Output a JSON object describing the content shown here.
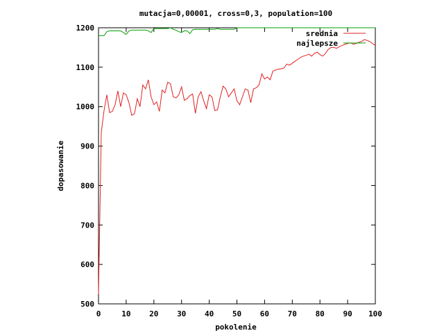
{
  "chart_data": {
    "type": "line",
    "title": "mutacja=0,00001, cross=0,3, population=100",
    "xlabel": "pokolenie",
    "ylabel": "dopasowanie",
    "xlim": [
      0,
      100
    ],
    "ylim": [
      500,
      1200
    ],
    "x_ticks": [
      0,
      10,
      20,
      30,
      40,
      50,
      60,
      70,
      80,
      90,
      100
    ],
    "y_ticks": [
      500,
      600,
      700,
      800,
      900,
      1000,
      1100,
      1200
    ],
    "legend_position": "top-right",
    "grid": false,
    "series": [
      {
        "name": "srednia",
        "color": "#e02020",
        "values": [
          525,
          935,
          990,
          1030,
          985,
          988,
          1005,
          1040,
          1000,
          1035,
          1030,
          1010,
          978,
          982,
          1020,
          1000,
          1055,
          1045,
          1068,
          1025,
          1005,
          1012,
          988,
          1042,
          1035,
          1062,
          1058,
          1025,
          1022,
          1030,
          1050,
          1016,
          1020,
          1028,
          1032,
          983,
          1025,
          1038,
          1015,
          995,
          1030,
          1025,
          990,
          992,
          1025,
          1052,
          1045,
          1025,
          1035,
          1045,
          1015,
          1005,
          1025,
          1045,
          1042,
          1010,
          1045,
          1048,
          1055,
          1083,
          1070,
          1075,
          1068,
          1090,
          1093,
          1095,
          1096,
          1098,
          1108,
          1105,
          1110,
          1115,
          1120,
          1125,
          1128,
          1130,
          1133,
          1128,
          1135,
          1138,
          1132,
          1128,
          1135,
          1145,
          1150,
          1150,
          1148,
          1152,
          1155,
          1158,
          1160,
          1162,
          1158,
          1160,
          1163,
          1165,
          1170,
          1168,
          1165,
          1160,
          1155
        ]
      },
      {
        "name": "najlepsze",
        "color": "#00a000",
        "values": [
          1180,
          1180,
          1180,
          1190,
          1192,
          1192,
          1192,
          1192,
          1192,
          1188,
          1183,
          1192,
          1194,
          1194,
          1194,
          1194,
          1194,
          1194,
          1192,
          1188,
          1198,
          1198,
          1198,
          1198,
          1198,
          1198,
          1200,
          1196,
          1194,
          1190,
          1188,
          1192,
          1192,
          1185,
          1195,
          1196,
          1196,
          1196,
          1196,
          1196,
          1196,
          1196,
          1196,
          1198,
          1196,
          1196,
          1196,
          1196,
          1196,
          1196,
          1200,
          1200,
          1200,
          1200,
          1200,
          1200,
          1200,
          1200,
          1200,
          1200,
          1200,
          1200,
          1200,
          1200,
          1200,
          1200,
          1200,
          1200,
          1200,
          1200,
          1200,
          1200,
          1200,
          1200,
          1200,
          1200,
          1200,
          1200,
          1200,
          1200,
          1200,
          1200,
          1200,
          1200,
          1200,
          1200,
          1200,
          1200,
          1200,
          1200,
          1200,
          1200,
          1200,
          1200,
          1200,
          1200,
          1200,
          1200,
          1200,
          1200,
          1200
        ]
      }
    ]
  }
}
